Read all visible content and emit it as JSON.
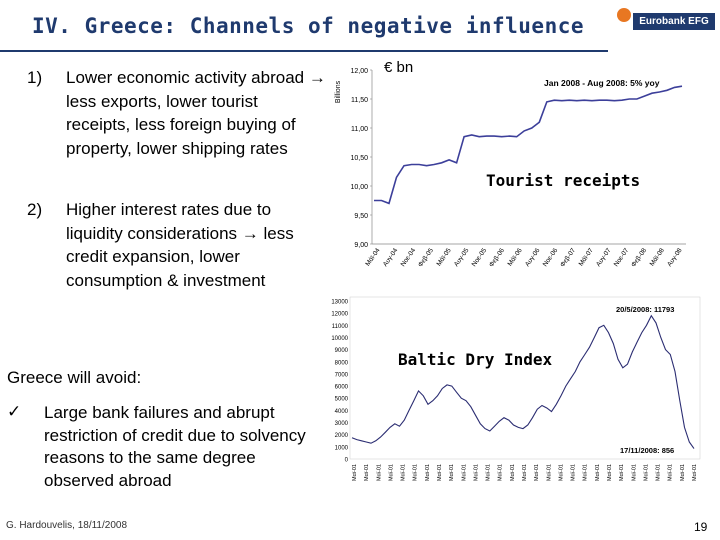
{
  "slide": {
    "title": "IV.  Greece: Channels of negative influence",
    "logo_text": "Eurobank EFG",
    "items": [
      {
        "num": "1)",
        "text": "Lower economic activity abroad → less exports, lower tourist receipts, less foreign buying of property, lower shipping rates"
      },
      {
        "num": "2)",
        "text": "Higher interest rates due to liquidity considerations →  less credit expansion, lower consumption & investment"
      }
    ],
    "avoid_heading": "Greece will avoid:",
    "check_mark": "✓",
    "avoid_item": "Large bank failures and abrupt restriction of credit due to solvency reasons to the same degree observed abroad",
    "footer": "G. Hardouvelis, 18/11/2008",
    "page_number": "19"
  },
  "chart_data": [
    {
      "type": "line",
      "title": "Tourist receipts",
      "unit_label": "€ bn",
      "ylabel": "Billions",
      "annotation": "Jan 2008 - Aug 2008: 5% yoy",
      "ylim": [
        9.0,
        12.0
      ],
      "yticks": [
        "12,00",
        "11,50",
        "11,00",
        "10,50",
        "10,00",
        "9,50",
        "9,00"
      ],
      "xticks": [
        "Μάϊ-04",
        "Αυγ-04",
        "Νοε-04",
        "Φεβ-05",
        "Μάϊ-05",
        "Αυγ-05",
        "Νοε-05",
        "Φεβ-06",
        "Μάϊ-06",
        "Αυγ-06",
        "Νοε-06",
        "Φεβ-07",
        "Μάϊ-07",
        "Αυγ-07",
        "Νοε-07",
        "Φεβ-08",
        "Μάϊ-08",
        "Αυγ-08"
      ],
      "series": [
        {
          "color": "#3c3f9a",
          "values": [
            9.75,
            9.75,
            9.7,
            10.15,
            10.35,
            10.37,
            10.37,
            10.35,
            10.37,
            10.4,
            10.45,
            10.4,
            10.85,
            10.88,
            10.85,
            10.86,
            10.86,
            10.85,
            10.86,
            10.85,
            10.95,
            11.0,
            11.1,
            11.45,
            11.48,
            11.47,
            11.48,
            11.47,
            11.48,
            11.47,
            11.48,
            11.48,
            11.47,
            11.48,
            11.5,
            11.5,
            11.55,
            11.6,
            11.62,
            11.65,
            11.7,
            11.72
          ]
        }
      ]
    },
    {
      "type": "line",
      "title": "Baltic Dry Index",
      "ylim": [
        0,
        13000
      ],
      "yticks": [
        "13000",
        "12000",
        "11000",
        "10000",
        "9000",
        "8000",
        "7000",
        "6000",
        "5000",
        "4000",
        "3000",
        "2000",
        "1000",
        "0"
      ],
      "annotations": [
        "20/5/2008: 11793",
        "17/11/2008: 856"
      ],
      "x_label_text": "Μαϊ-01",
      "series": [
        {
          "color": "#2b2d72",
          "values": [
            1750,
            1600,
            1500,
            1400,
            1300,
            1500,
            1800,
            2200,
            2600,
            2900,
            2700,
            3200,
            4000,
            4800,
            5600,
            5200,
            4500,
            4800,
            5200,
            5800,
            6100,
            6000,
            5500,
            5000,
            4800,
            4300,
            3600,
            2900,
            2500,
            2300,
            2700,
            3100,
            3400,
            3200,
            2800,
            2600,
            2500,
            2800,
            3400,
            4100,
            4400,
            4200,
            3900,
            4500,
            5200,
            6000,
            6600,
            7200,
            8000,
            8600,
            9200,
            10000,
            10800,
            11000,
            10400,
            9500,
            8200,
            7500,
            7800,
            8800,
            9600,
            10400,
            11000,
            11793,
            11200,
            10000,
            9000,
            8600,
            7200,
            4800,
            2600,
            1400,
            856
          ]
        }
      ]
    }
  ]
}
